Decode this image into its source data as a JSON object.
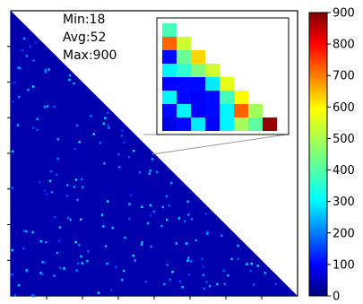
{
  "chart_data": {
    "type": "heatmap",
    "title": "",
    "xlabel": "",
    "ylabel": "",
    "matrix_shape": "lower-triangular",
    "annotations": {
      "min": "Min:18",
      "avg": "Avg:52",
      "max": "Max:900"
    },
    "colorbar": {
      "colormap": "jet",
      "range": [
        0,
        900
      ],
      "ticks": [
        0,
        100,
        200,
        300,
        400,
        500,
        600,
        700,
        800,
        900
      ]
    },
    "inset": {
      "description_source": "zoomed top-left corner",
      "rows": [
        [
          400
        ],
        [
          700,
          520
        ],
        [
          120,
          430,
          600
        ],
        [
          330,
          380,
          450,
          520
        ],
        [
          110,
          120,
          120,
          320,
          540
        ],
        [
          330,
          120,
          110,
          120,
          400,
          560
        ],
        [
          120,
          330,
          110,
          120,
          330,
          700,
          480
        ],
        [
          90,
          120,
          320,
          110,
          330,
          480,
          420,
          880
        ]
      ]
    },
    "main_background_value": 40,
    "main_sparse_value_range": [
      150,
      320
    ]
  }
}
